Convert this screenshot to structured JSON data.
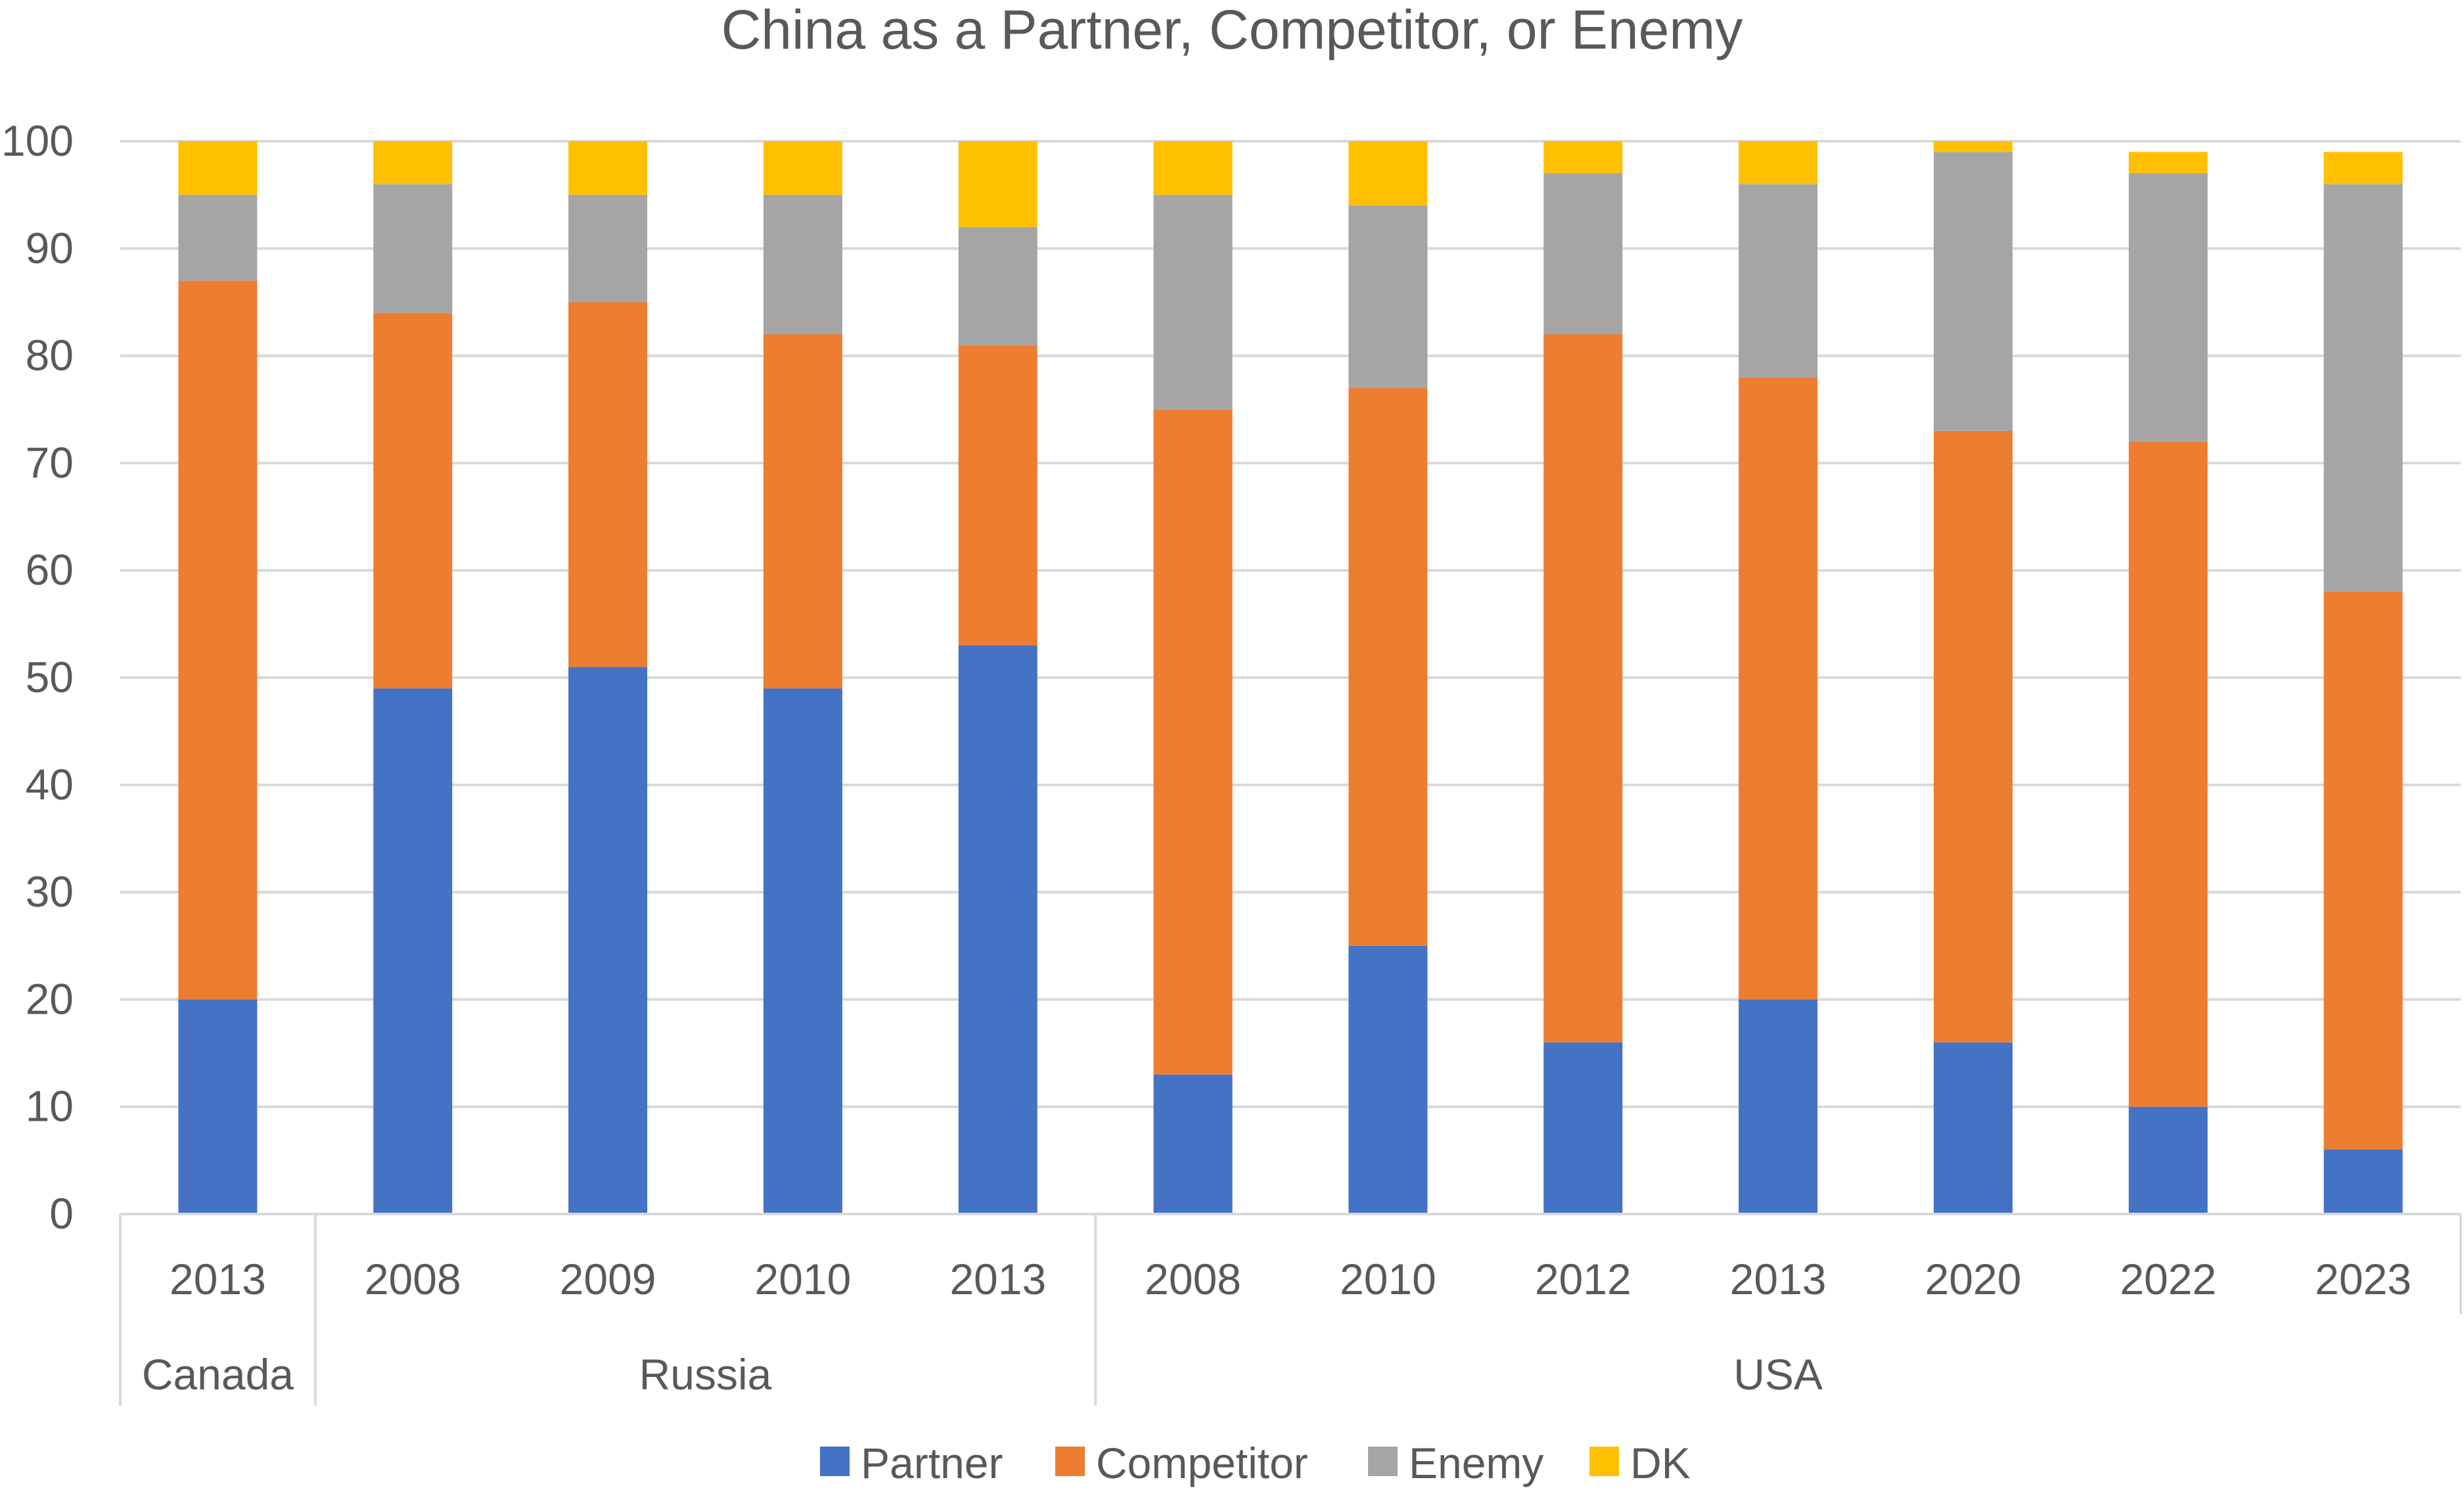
{
  "chart_data": {
    "type": "bar",
    "stacked": true,
    "title": "China as a Partner, Competitor, or Enemy",
    "xlabel": "",
    "ylabel": "",
    "ylim": [
      0,
      100
    ],
    "yticks": [
      0,
      10,
      20,
      30,
      40,
      50,
      60,
      70,
      80,
      90,
      100
    ],
    "grid": true,
    "legend_position": "bottom",
    "groups": [
      {
        "name": "Canada",
        "count": 1
      },
      {
        "name": "Russia",
        "count": 4
      },
      {
        "name": "USA",
        "count": 7
      }
    ],
    "categories": [
      "2013",
      "2008",
      "2009",
      "2010",
      "2013",
      "2008",
      "2010",
      "2012",
      "2013",
      "2020",
      "2022",
      "2023"
    ],
    "series": [
      {
        "name": "Partner",
        "color": "#4472C4",
        "values": [
          20,
          49,
          51,
          49,
          53,
          13,
          25,
          16,
          20,
          16,
          10,
          6
        ]
      },
      {
        "name": "Competitor",
        "color": "#ED7D31",
        "values": [
          67,
          35,
          34,
          33,
          28,
          62,
          52,
          66,
          58,
          57,
          62,
          52
        ]
      },
      {
        "name": "Enemy",
        "color": "#A5A5A5",
        "values": [
          8,
          12,
          10,
          13,
          11,
          20,
          17,
          15,
          18,
          26,
          25,
          38
        ]
      },
      {
        "name": "DK",
        "color": "#FFC000",
        "values": [
          5,
          4,
          5,
          5,
          8,
          5,
          6,
          3,
          4,
          1,
          2,
          3
        ]
      }
    ]
  }
}
